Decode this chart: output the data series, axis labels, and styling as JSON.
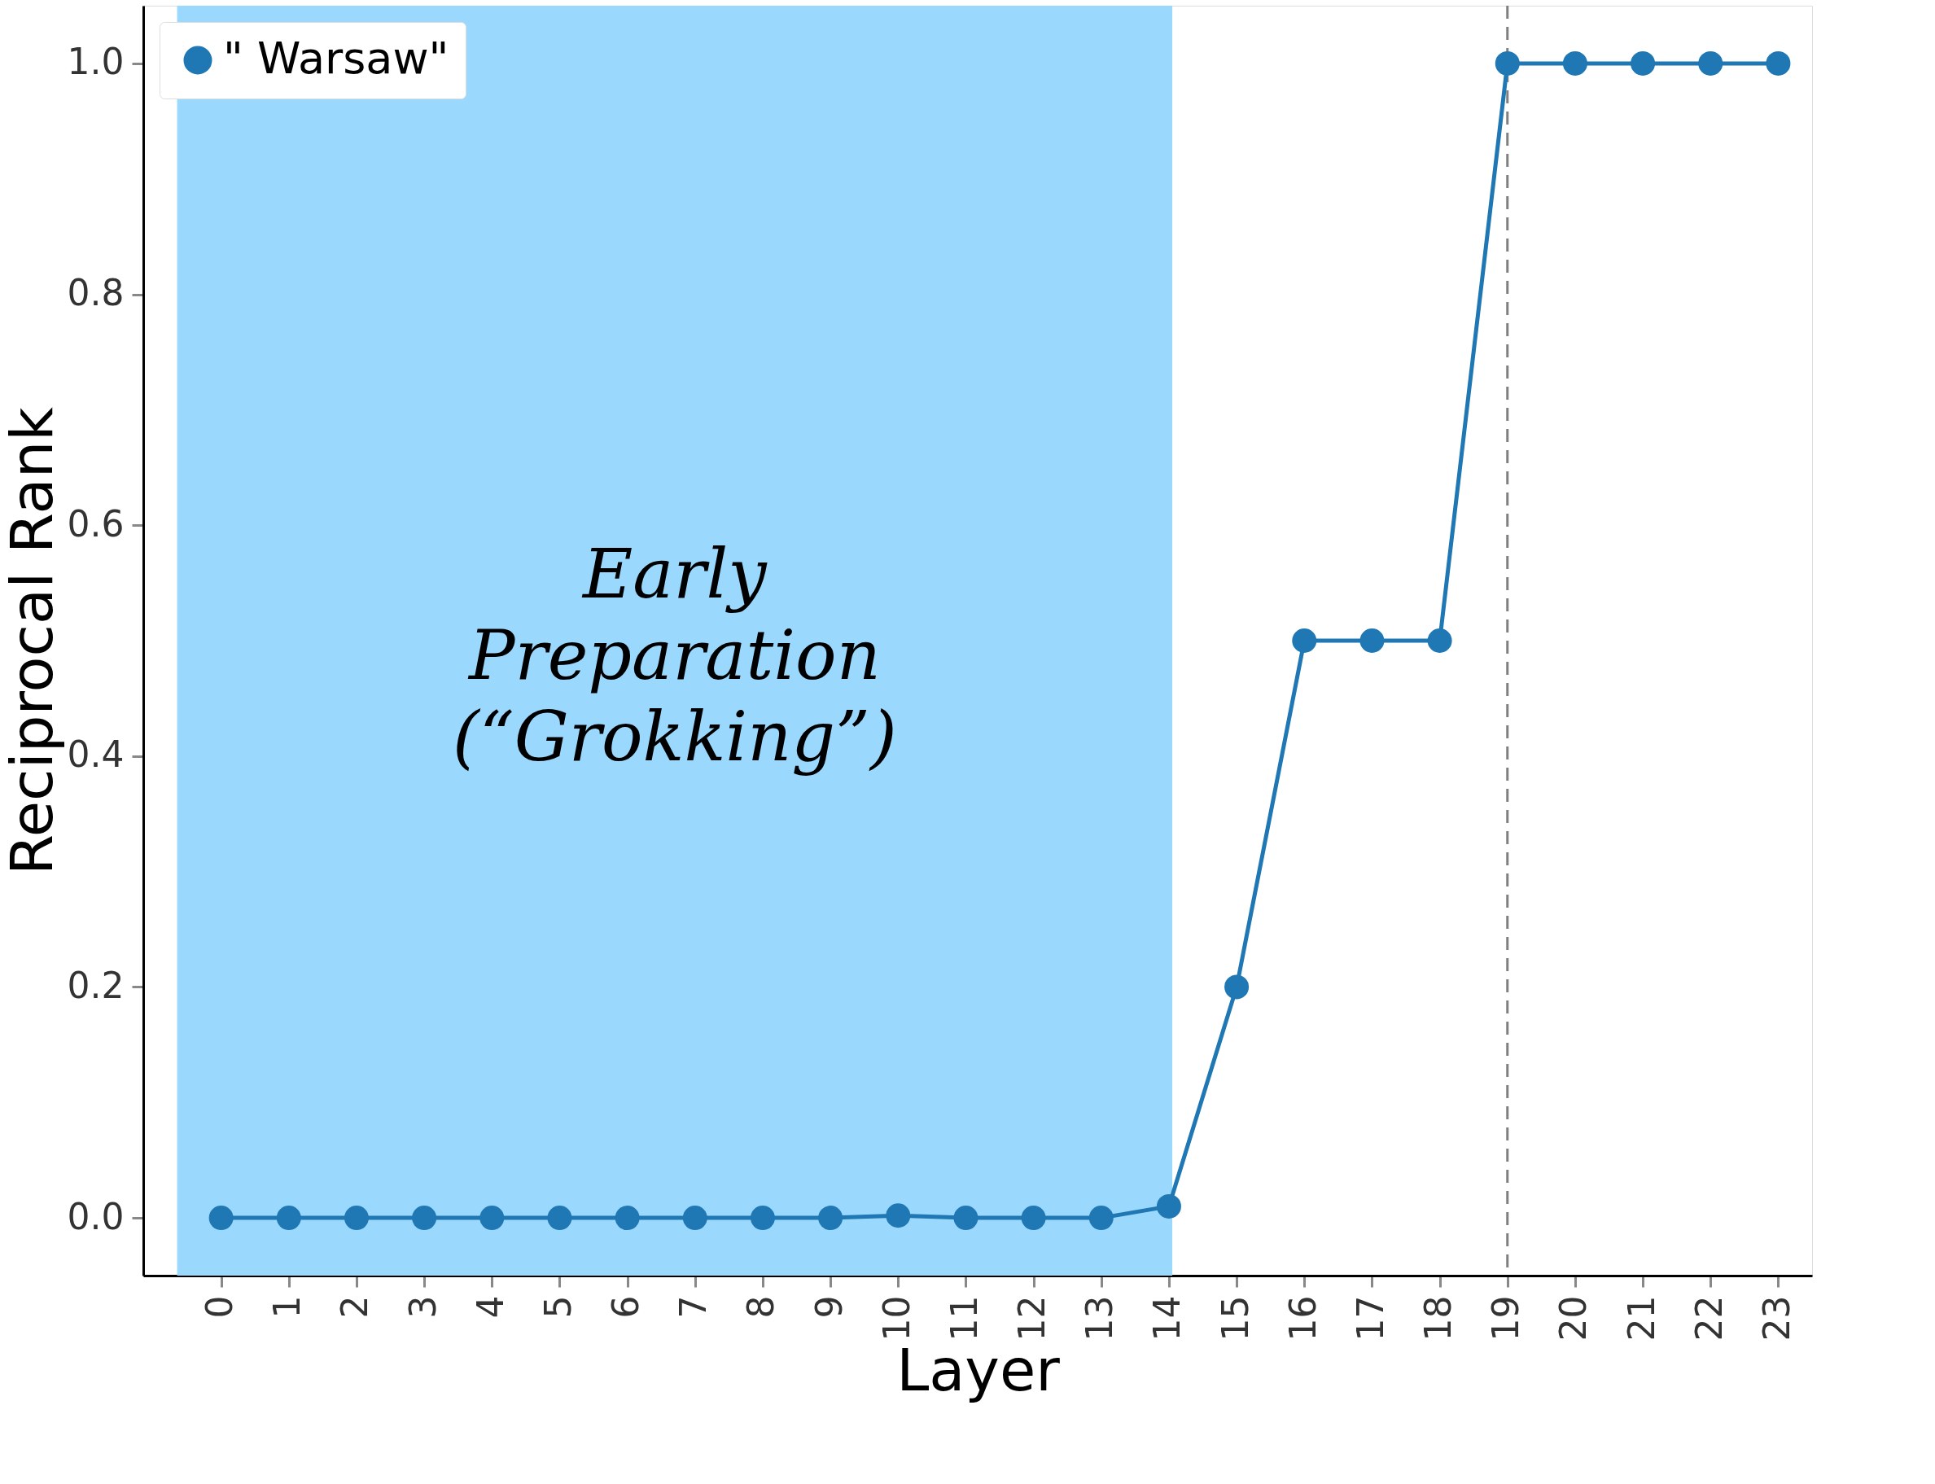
{
  "chart_data": {
    "type": "line",
    "xlabel": "Layer",
    "ylabel": "Reciprocal Rank",
    "x": [
      0,
      1,
      2,
      3,
      4,
      5,
      6,
      7,
      8,
      9,
      10,
      11,
      12,
      13,
      14,
      15,
      16,
      17,
      18,
      19,
      20,
      21,
      22,
      23
    ],
    "series": [
      {
        "name": "\" Warsaw\"",
        "color": "#1f77b4",
        "values": [
          0,
          0,
          0,
          0,
          0,
          0,
          0,
          0,
          0,
          0,
          0.002,
          0,
          0,
          0,
          0.01,
          0.2,
          0.5,
          0.5,
          0.5,
          1.0,
          1.0,
          1.0,
          1.0,
          1.0
        ]
      }
    ],
    "xlim": [
      -1.15,
      23.5
    ],
    "xticks": [
      0,
      1,
      2,
      3,
      4,
      5,
      6,
      7,
      8,
      9,
      10,
      11,
      12,
      13,
      14,
      15,
      16,
      17,
      18,
      19,
      20,
      21,
      22,
      23
    ],
    "ylim": [
      -0.05,
      1.05
    ],
    "yticks": [
      {
        "value": 0,
        "label": "0.0"
      },
      {
        "value": 0.2,
        "label": "0.2"
      },
      {
        "value": 0.4,
        "label": "0.4"
      },
      {
        "value": 0.6,
        "label": "0.6"
      },
      {
        "value": 0.8,
        "label": "0.8"
      },
      {
        "value": 1.0,
        "label": "1.0"
      }
    ],
    "bands": [
      {
        "axis": "x",
        "from": -0.65,
        "to": 14.05,
        "label": "Early\nPreparation\n(“Grokking”)",
        "color": "#9ad8fd"
      }
    ],
    "ref_lines": [
      {
        "axis": "x",
        "value": 19,
        "line_style": "dashed",
        "color": "#808080"
      }
    ],
    "marker": "circle",
    "line_style": "solid",
    "grid": false,
    "legend": "top left"
  }
}
